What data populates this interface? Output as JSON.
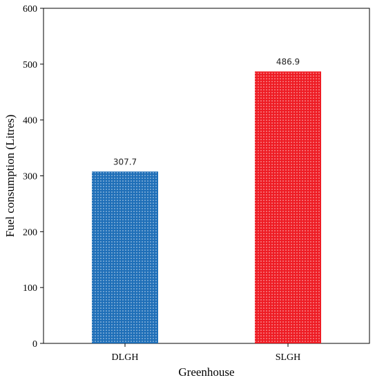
{
  "chart_data": {
    "type": "bar",
    "categories": [
      "DLGH",
      "SLGH"
    ],
    "values": [
      307.7,
      486.9
    ],
    "data_labels": [
      "307.7",
      "486.9"
    ],
    "title": "",
    "xlabel": "Greenhouse",
    "ylabel": "Fuel consumption (Litres)",
    "ylim": [
      0,
      600
    ],
    "yticks": [
      "0",
      "100",
      "200",
      "300",
      "400",
      "500",
      "600"
    ],
    "grid": false,
    "legend": "none",
    "bar_colors": [
      "#1f6fb8",
      "#ee1c24"
    ],
    "bar_pattern": "dotted"
  }
}
